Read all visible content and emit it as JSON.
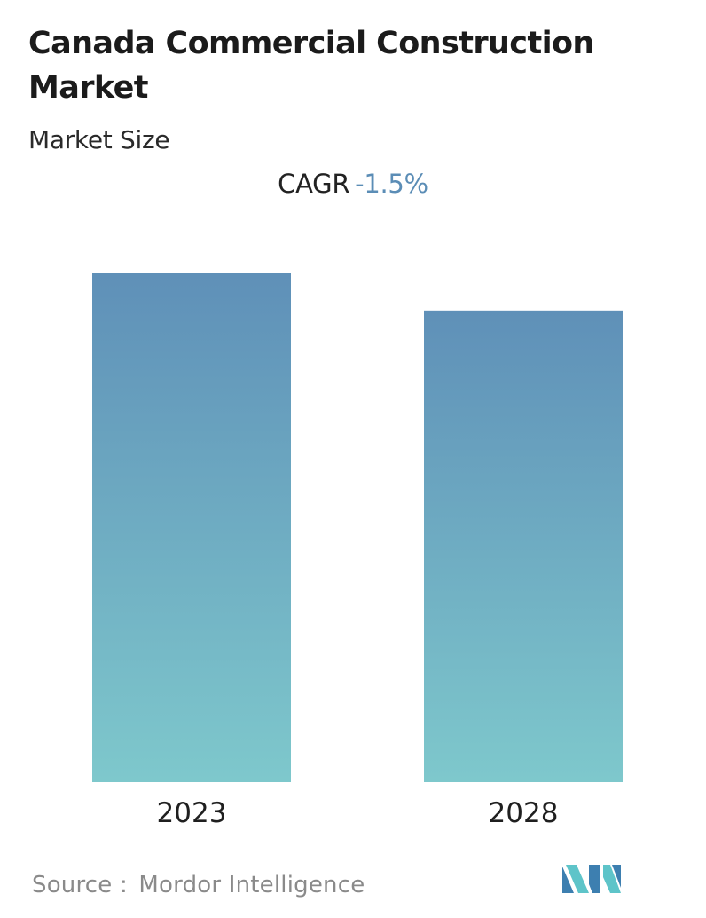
{
  "header": {
    "title": "Canada Commercial Construction Market",
    "subtitle": "Market Size",
    "cagr_label": "CAGR",
    "cagr_value": "-1.5%"
  },
  "footer": {
    "source_label": "Source :",
    "source_name": "Mordor Intelligence",
    "logo_icon": "mordor-intelligence-logo-icon"
  },
  "colors": {
    "bar_top": "#5f90b8",
    "bar_bottom": "#7ec8cc",
    "cagr_accent": "#5b8db6",
    "logo_dark": "#3d7fb0",
    "logo_light": "#5ec4c9"
  },
  "chart_data": {
    "type": "bar",
    "categories": [
      "2023",
      "2028"
    ],
    "values": [
      100,
      92.7
    ],
    "ylim": [
      0,
      100
    ],
    "grid": false,
    "legend": "none"
  }
}
